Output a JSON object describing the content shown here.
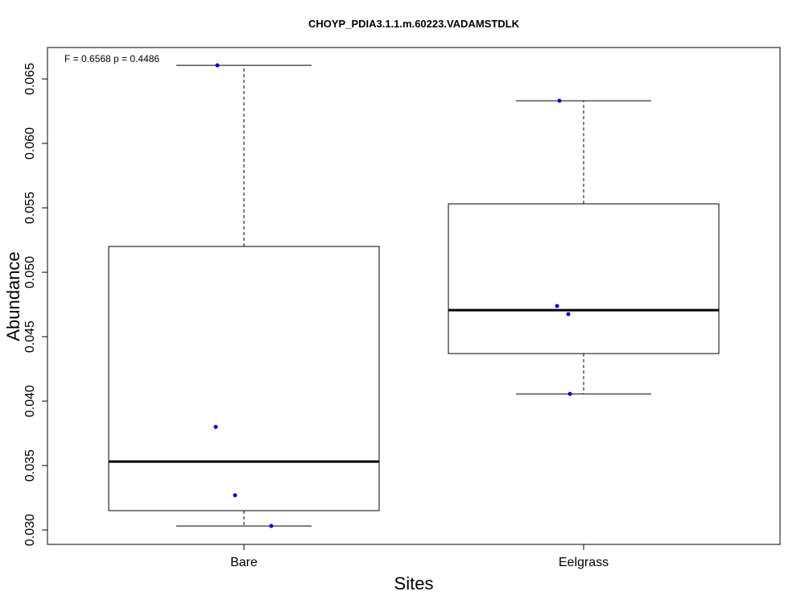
{
  "chart_data": {
    "type": "box",
    "title": "CHOYP_PDIA3.1.1.m.60223.VADAMSTDLK",
    "annotation": "F = 0.6568 p = 0.4486",
    "x_label": "Sites",
    "y_label": "Abundance",
    "categories": [
      "Bare",
      "Eelgrass"
    ],
    "boxes": [
      {
        "whisker_low": 0.03031,
        "q1": 0.0315,
        "median": 0.03531,
        "q3": 0.052,
        "whisker_high": 0.06606
      },
      {
        "whisker_low": 0.04056,
        "q1": 0.04369,
        "median": 0.04706,
        "q3": 0.05531,
        "whisker_high": 0.06331
      }
    ],
    "points": [
      [
        0.06606,
        0.038,
        0.03269,
        0.03031
      ],
      [
        0.06331,
        0.04738,
        0.04675,
        0.04056
      ]
    ],
    "point_color": "#0000cc",
    "ylim": [
      0.02888,
      0.06744
    ],
    "yticks": [
      {
        "value": 0.03,
        "label": "0.030"
      },
      {
        "value": 0.035,
        "label": "0.035"
      },
      {
        "value": 0.04,
        "label": "0.040"
      },
      {
        "value": 0.045,
        "label": "0.045"
      },
      {
        "value": 0.05,
        "label": "0.050"
      },
      {
        "value": 0.055,
        "label": "0.055"
      },
      {
        "value": 0.06,
        "label": "0.060"
      },
      {
        "value": 0.065,
        "label": "0.065"
      }
    ]
  }
}
